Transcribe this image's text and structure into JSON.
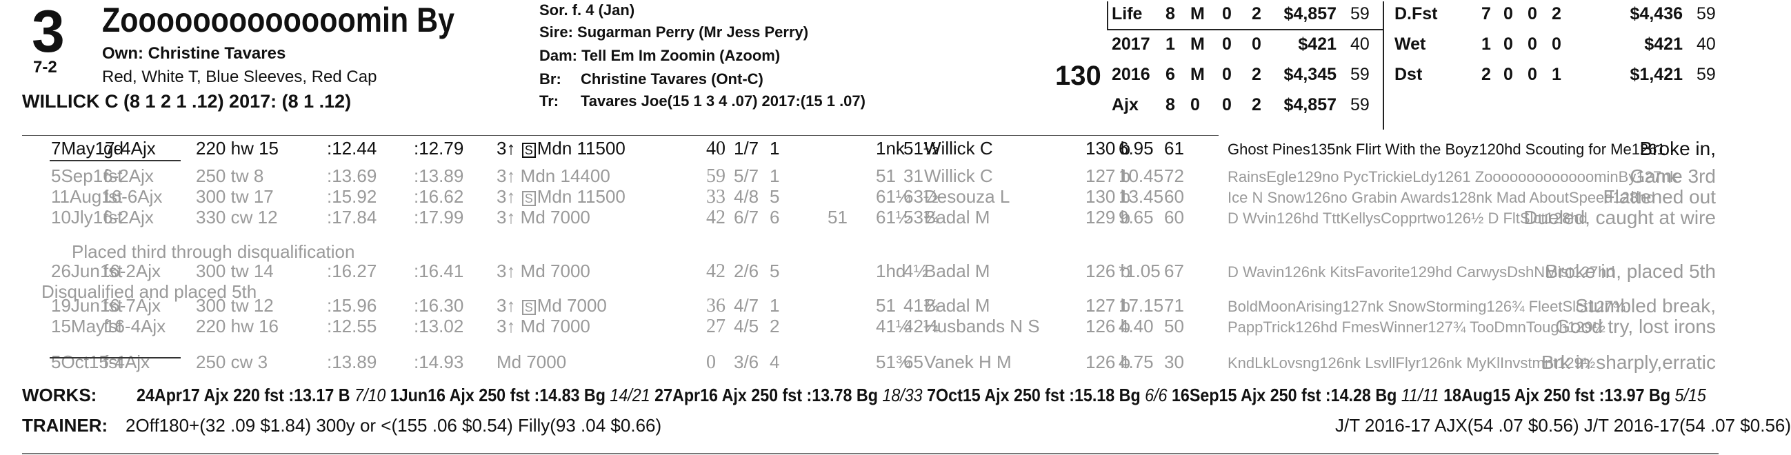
{
  "header": {
    "post": "3",
    "odds": "7-2",
    "name": "Zooooooooooooomin By",
    "owner": "Own: Christine Tavares",
    "silks": "Red, White T, Blue Sleeves, Red Cap",
    "jockey": "WILLICK C (8 1 2 1 .12) 2017: (8 1 .12)",
    "sex_age": "Sor. f. 4 (Jan)",
    "sire": "Sire: Sugarman Perry (Mr Jess Perry)",
    "dam": "Dam: Tell Em Im Zoomin (Azoom)",
    "breeder_label": "Br:",
    "breeder": "Christine Tavares (Ont-C)",
    "trainer_label": "Tr:",
    "trainer": "Tavares Joe(15 1 3 4 .07)  2017:(15 1 .07)",
    "weight": "130"
  },
  "stats_left": [
    [
      "Life",
      "8",
      "M",
      "0",
      "2",
      "$4,857",
      "59"
    ],
    [
      "2017",
      "1",
      "M",
      "0",
      "0",
      "$421",
      "40"
    ],
    [
      "2016",
      "6",
      "M",
      "0",
      "2",
      "$4,345",
      "59"
    ],
    [
      "Ajx",
      "8",
      "0",
      "0",
      "2",
      "$4,857",
      "59"
    ]
  ],
  "stats_right": [
    [
      "D.Fst",
      "7",
      "0",
      "0",
      "2",
      "$4,436",
      "59"
    ],
    [
      "Wet",
      "1",
      "0",
      "0",
      "0",
      "$421",
      "40"
    ],
    [
      "Dst",
      "2",
      "0",
      "0",
      "1",
      "$1,421",
      "59"
    ]
  ],
  "past_performances": [
    {
      "date": "7May17-4Ajx",
      "cond": "gd",
      "dist": "220 hw 15",
      "f1": ":12.44",
      "f2": ":12.79",
      "race": "3↑ S Mdn 11500",
      "sp": "40",
      "pp": "1/7",
      "st": "1",
      "c1": "",
      "fin": "1nk",
      "fin2": "51½",
      "jockey": "Willick C",
      "wt": "130 b",
      "odds": "6.95",
      "sr": "61",
      "comp": "Ghost Pines135nk Flirt With the Boyz120hd Scouting for Me1261",
      "comment": "Broke in,",
      "gray": false
    },
    {
      "date": "5Sep16-2Ajx",
      "cond": "fst",
      "dist": "250 tw 8",
      "f1": ":13.69",
      "f2": ":13.89",
      "race": "3↑ Mdn 14400",
      "sp": "59",
      "pp": "5/7",
      "st": "1",
      "c1": "",
      "fin": "51",
      "fin2": "31",
      "jockey": "Willick C",
      "wt": "127 b",
      "odds": "10.45",
      "sr": "72",
      "comp": "RainsEgle129no PycTrickieLdy1261 ZooooooooooooominBy127nk",
      "comment": "Game 3rd",
      "gray": true
    },
    {
      "date": "11Aug16-6Ajx",
      "cond": "fst",
      "dist": "300 tw 17",
      "f1": ":15.92",
      "f2": ":16.62",
      "race": "3↑ S Mdn 11500",
      "sp": "33",
      "pp": "4/8",
      "st": "5",
      "c1": "",
      "fin": "61¼",
      "fin2": "63½",
      "jockey": "Desouza L",
      "wt": "130 b",
      "odds": "13.45",
      "sr": "60",
      "comp": "Ice N Snow126no Grabin Awards128nk Mad AboutSpeed128hd",
      "comment": "Flattened out",
      "gray": true
    },
    {
      "date": "10Jly16-2Ajx",
      "cond": "fst",
      "dist": "330 cw 12",
      "f1": ":17.84",
      "f2": ":17.99",
      "race": "3↑ Md 7000",
      "sp": "42",
      "pp": "6/7",
      "st": "6",
      "c1": "51",
      "fin": "61½",
      "fin2": "53¾",
      "jockey": "Badal M",
      "wt": "129 b",
      "odds": "9.65",
      "sr": "60",
      "comp": "D Wvin126hd TttKellysCopprtwo126½ D FltSlct128hd",
      "comment": "Dueled, caught at wire",
      "gray": true
    },
    {
      "date": "26Jun16-2Ajx",
      "cond": "fst",
      "dist": "300 tw 14",
      "f1": ":16.27",
      "f2": ":16.41",
      "race": "3↑ Md 7000",
      "sp": "42",
      "pp": "2/6",
      "st": "5",
      "c1": "",
      "fin": "1hd",
      "fin2": "4½",
      "jockey": "Badal M",
      "wt": "126 b",
      "odds": "*1.05",
      "sr": "67",
      "comp": "D Wavin126nk KitsFavorite129hd CarwysDshNMist127hd",
      "comment": "Broke in, placed 5th",
      "gray": true
    },
    {
      "date": "19Jun16-7Ajx",
      "cond": "fst",
      "dist": "300 tw 12",
      "f1": ":15.96",
      "f2": ":16.30",
      "race": "3↑ S Md 7000",
      "sp": "36",
      "pp": "4/7",
      "st": "1",
      "c1": "",
      "fin": "51",
      "fin2": "41¾",
      "jockey": "Badal M",
      "wt": "127 b",
      "odds": "17.15",
      "sr": "71",
      "comp": "BoldMoonArising127nk SnowStorming126¾ FleetSlct127¾",
      "comment": "Stumbled break,",
      "gray": true
    },
    {
      "date": "15May16-4Ajx",
      "cond": "fst",
      "dist": "220 hw 16",
      "f1": ":12.55",
      "f2": ":13.02",
      "race": "3↑ Md 7000",
      "sp": "27",
      "pp": "4/5",
      "st": "2",
      "c1": "",
      "fin": "41½",
      "fin2": "42¼",
      "jockey": "Husbands N S",
      "wt": "126 b",
      "odds": "4.40",
      "sr": "50",
      "comp": "PappTrick126hd FmesWinner127¾ TooDmnTough129½",
      "comment": "Good try, lost irons",
      "gray": true
    },
    {
      "date": "5Oct15-4Ajx",
      "cond": "fst",
      "dist": "250 cw 3",
      "f1": ":13.89",
      "f2": ":14.93",
      "race": "Md 7000",
      "sp": "0",
      "pp": "3/6",
      "st": "4",
      "c1": "",
      "fin": "51¾",
      "fin2": "65",
      "jockey": "Vanek H M",
      "wt": "126 b",
      "odds": "4.75",
      "sr": "30",
      "comp": "KndLkLovsng126nk LsvllFlyr126nk MyKlInvstmnt129½",
      "comment": "Brk in sharply,erratic",
      "gray": true
    }
  ],
  "notes": {
    "n1": "Placed third through disqualification",
    "n2": "Disqualified and placed 5th"
  },
  "works_label": "WORKS:",
  "works": [
    {
      "main": "24Apr17 Ajx 220 fst :13.17 B",
      "rank": "7/10"
    },
    {
      "main": "1Jun16 Ajx 250 fst :14.83 Bg",
      "rank": "14/21"
    },
    {
      "main": "27Apr16 Ajx 250 fst :13.78 Bg",
      "rank": "18/33"
    },
    {
      "main": "7Oct15 Ajx 250 fst :15.18 Bg",
      "rank": "6/6"
    },
    {
      "main": "16Sep15 Ajx 250 fst :14.28 Bg",
      "rank": "11/11"
    },
    {
      "main": "18Aug15 Ajx 250 fst :13.97 Bg",
      "rank": "5/15"
    }
  ],
  "trainer_label": "TRAINER:",
  "trainer_stats": "2Off180+(32 .09 $1.84) 300y or <(155 .06 $0.54) Filly(93 .04 $0.66)",
  "jt_stats": "J/T 2016-17 AJX(54 .07 $0.56)  J/T 2016-17(54 .07 $0.56)"
}
